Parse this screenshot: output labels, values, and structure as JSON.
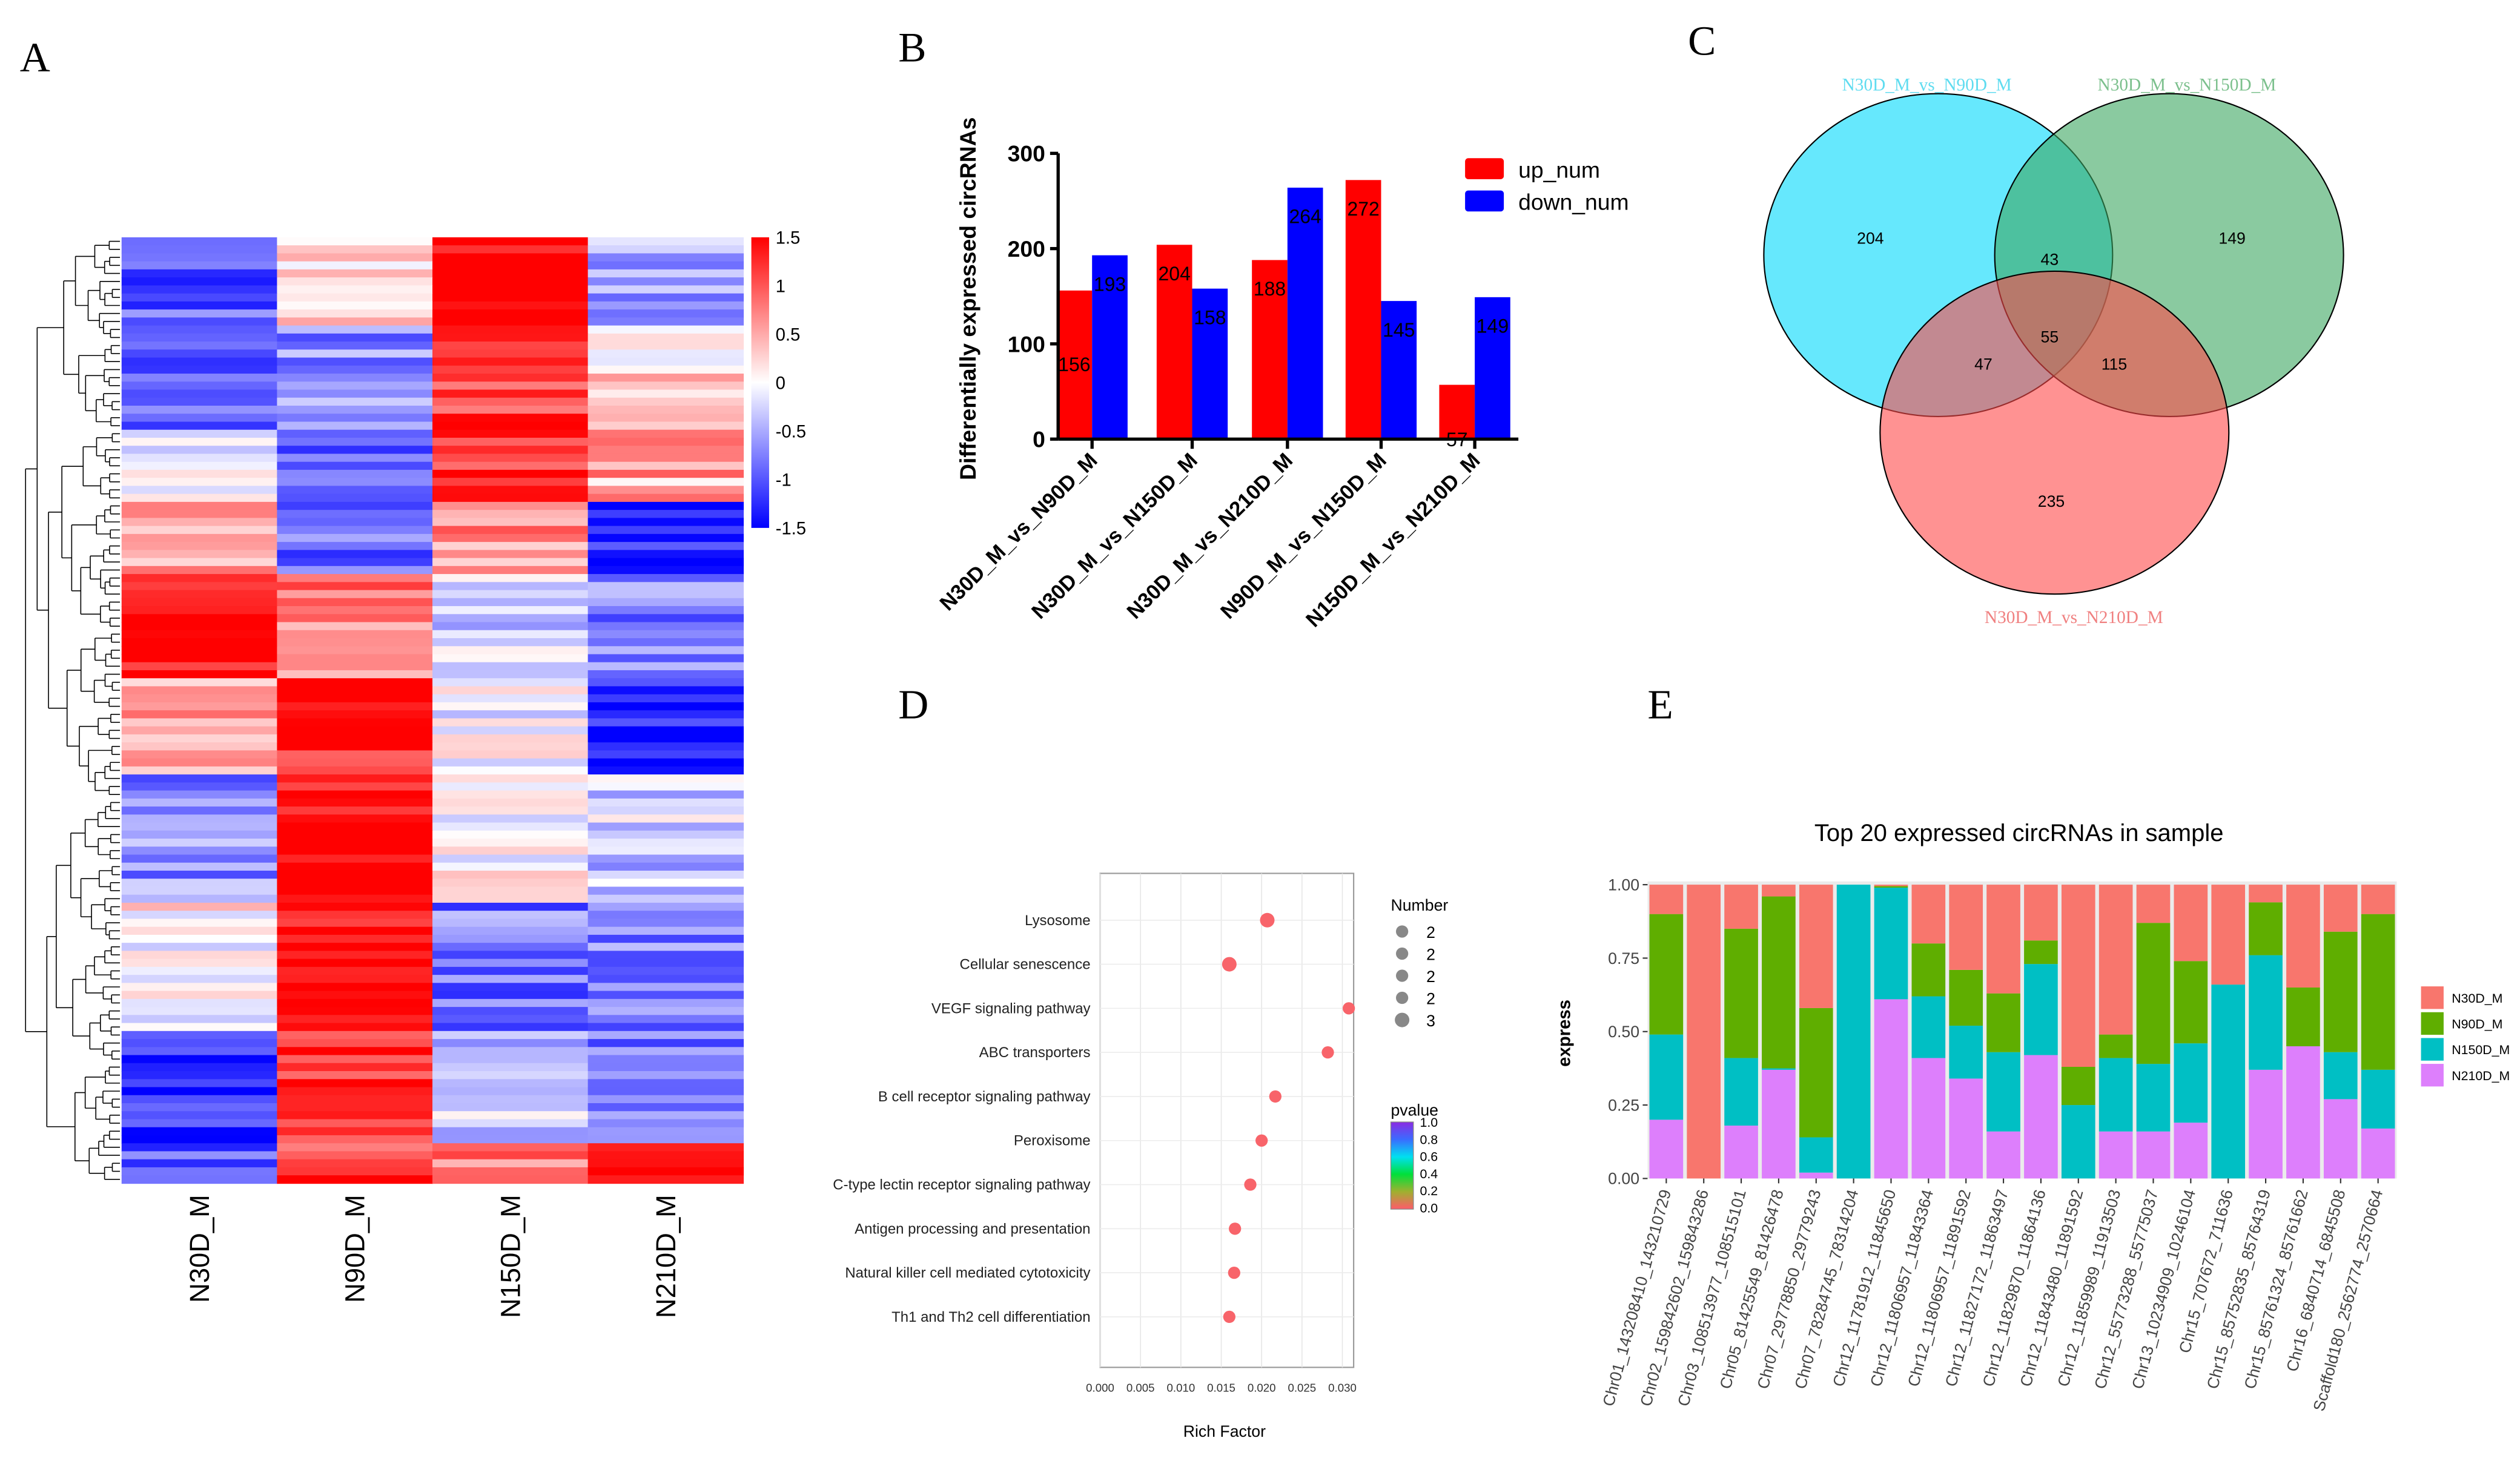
{
  "panels": {
    "a": "A",
    "b": "B",
    "c": "C",
    "d": "D",
    "e": "E"
  },
  "chart_data": [
    {
      "id": "A",
      "type": "heatmap",
      "columns": [
        "N30D_M",
        "N90D_M",
        "N150D_M",
        "N210D_M"
      ],
      "colorbar": {
        "ticks": [
          "1.5",
          "1",
          "0.5",
          "0",
          "-0.5",
          "-1",
          "-1.5"
        ],
        "range": [
          -1.5,
          1.5
        ],
        "low": "#0000ff",
        "mid": "#ffffff",
        "high": "#ff0000"
      },
      "blocks": [
        {
          "rows": 11,
          "values": [
            -1.0,
            0.2,
            1.5,
            -0.6
          ]
        },
        {
          "rows": 13,
          "values": [
            -1.0,
            -0.7,
            1.2,
            0.3
          ]
        },
        {
          "rows": 9,
          "values": [
            0.0,
            -1.0,
            1.3,
            0.5
          ]
        },
        {
          "rows": 9,
          "values": [
            0.6,
            -0.8,
            0.6,
            -1.3
          ]
        },
        {
          "rows": 13,
          "values": [
            1.5,
            0.8,
            -0.3,
            -0.8
          ]
        },
        {
          "rows": 12,
          "values": [
            0.5,
            1.2,
            0.0,
            -1.4
          ]
        },
        {
          "rows": 16,
          "values": [
            -0.7,
            1.5,
            0.1,
            -0.3
          ]
        },
        {
          "rows": 16,
          "values": [
            0.1,
            1.5,
            -0.8,
            -0.7
          ]
        },
        {
          "rows": 14,
          "values": [
            -1.3,
            1.3,
            -0.3,
            -0.9
          ]
        },
        {
          "rows": 5,
          "values": [
            -1.0,
            1.2,
            0.7,
            1.5
          ]
        }
      ]
    },
    {
      "id": "B",
      "type": "bar",
      "ylabel": "Differentially expressed circRNAs",
      "ylim": [
        0,
        300
      ],
      "yticks": [
        "0",
        "100",
        "200",
        "300"
      ],
      "categories": [
        "N30D_M_vs_N90D_M",
        "N30D_M_vs_N150D_M",
        "N30D_M_vs_N210D_M",
        "N90D_M_vs_N150D_M",
        "N150D_M_vs_N210D_M"
      ],
      "series": [
        {
          "name": "up_num",
          "color": "#ff0000",
          "values": [
            156,
            204,
            188,
            272,
            57
          ]
        },
        {
          "name": "down_num",
          "color": "#0000ff",
          "values": [
            193,
            158,
            264,
            145,
            149
          ]
        }
      ],
      "legend": "top-right"
    },
    {
      "id": "C",
      "type": "venn",
      "sets": [
        {
          "name": "N30D_M_vs_N90D_M",
          "color": "#5fdcf0"
        },
        {
          "name": "N30D_M_vs_N150D_M",
          "color": "#7cc08d"
        },
        {
          "name": "N30D_M_vs_N210D_M",
          "color": "#f08080"
        }
      ],
      "regions": {
        "only_1": "204",
        "only_2": "149",
        "only_3": "235",
        "1_2": "43",
        "1_3": "47",
        "2_3": "115",
        "1_2_3": "55"
      }
    },
    {
      "id": "D",
      "type": "scatter",
      "xlabel": "Rich Factor",
      "xlim": [
        0,
        0.031
      ],
      "xticks": [
        "0.000",
        "0.005",
        "0.010",
        "0.015",
        "0.020",
        "0.025",
        "0.030"
      ],
      "categories": [
        "Lysosome",
        "Cellular senescence",
        "VEGF signaling pathway",
        "ABC transporters",
        "B cell receptor signaling pathway",
        "Peroxisome",
        "C-type lectin receptor signaling pathway",
        "Antigen processing and presentation",
        "Natural killer cell mediated cytotoxicity",
        "Th1 and Th2 cell differentiation"
      ],
      "rich_factor": [
        0.0207,
        0.016,
        0.0308,
        0.0282,
        0.0217,
        0.02,
        0.0186,
        0.0167,
        0.0166,
        0.016
      ],
      "number": [
        3,
        3,
        2,
        2,
        2,
        2,
        2,
        2,
        2,
        2
      ],
      "pvalue": [
        0.0,
        0.0,
        0.0,
        0.0,
        0.0,
        0.0,
        0.0,
        0.0,
        0.0,
        0.0
      ],
      "size_legend": {
        "title": "Number",
        "labels": [
          "2",
          "2",
          "2",
          "2",
          "3"
        ]
      },
      "color_legend": {
        "title": "pvalue",
        "ticks": [
          "1.0",
          "0.8",
          "0.6",
          "0.4",
          "0.2",
          "0.0"
        ]
      }
    },
    {
      "id": "E",
      "type": "bar",
      "stacked": true,
      "title": "Top 20 expressed circRNAs in sample",
      "ylabel": "express",
      "ylim": [
        0,
        1
      ],
      "yticks": [
        "0.00",
        "0.25",
        "0.50",
        "0.75",
        "1.00"
      ],
      "categories": [
        "Chr01_143208410_143210729",
        "Chr02_159842602_159843286",
        "Chr03_108513977_108515101",
        "Chr05_81425549_81426478",
        "Chr07_29778850_29779243",
        "Chr07_78284745_78314204",
        "Chr12_11781912_11845650",
        "Chr12_11806957_11843364",
        "Chr12_11806957_11891592",
        "Chr12_11827172_11863497",
        "Chr12_11829870_11864136",
        "Chr12_11843480_11891592",
        "Chr12_11859989_11913503",
        "Chr12_55773288_55775037",
        "Chr13_10234909_10246104",
        "Chr15_707672_711636",
        "Chr15_85752835_85764319",
        "Chr15_85761324_85761662",
        "Chr16_6840714_6845508",
        "Scaffold180_2562774_2570664"
      ],
      "series": [
        {
          "name": "N210D_M",
          "color": "#dd7ffc",
          "values": [
            0.2,
            0,
            0.18,
            0.37,
            0.02,
            0,
            0.61,
            0.41,
            0.34,
            0.16,
            0.42,
            0,
            0.16,
            0.16,
            0.19,
            0,
            0.37,
            0.45,
            0.27,
            0.17
          ]
        },
        {
          "name": "N150D_M",
          "color": "#00bfc4",
          "values": [
            0.29,
            0,
            0.23,
            0.005,
            0.12,
            1.0,
            0.38,
            0.21,
            0.18,
            0.27,
            0.31,
            0.25,
            0.25,
            0.23,
            0.27,
            0.66,
            0.39,
            0.0,
            0.16,
            0.2
          ]
        },
        {
          "name": "N90D_M",
          "color": "#5fae00",
          "values": [
            0.41,
            0,
            0.44,
            0.585,
            0.44,
            0,
            0.005,
            0.18,
            0.19,
            0.2,
            0.08,
            0.13,
            0.08,
            0.48,
            0.28,
            0,
            0.18,
            0.2,
            0.41,
            0.53
          ]
        },
        {
          "name": "N30D_M",
          "color": "#f8766d",
          "values": [
            0.1,
            1.0,
            0.15,
            0.04,
            0.42,
            0,
            0.005,
            0.2,
            0.29,
            0.37,
            0.19,
            0.62,
            0.51,
            0.13,
            0.26,
            0.34,
            0.06,
            0.35,
            0.16,
            0.1
          ]
        }
      ],
      "legend_order": [
        "N30D_M",
        "N90D_M",
        "N150D_M",
        "N210D_M"
      ],
      "legend": "right"
    }
  ]
}
